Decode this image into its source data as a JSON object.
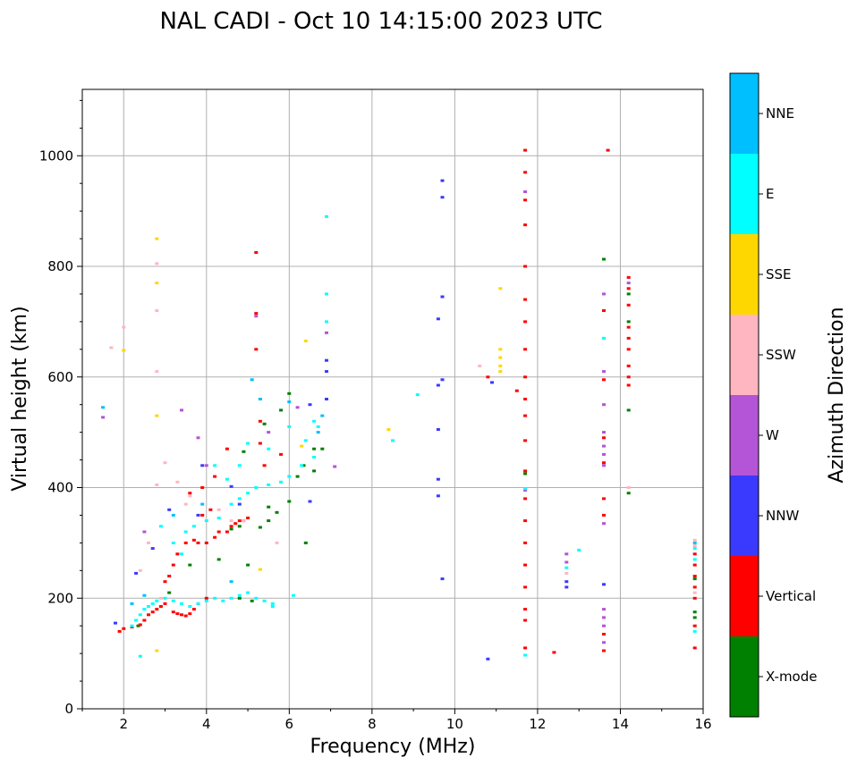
{
  "chart_data": {
    "type": "scatter",
    "title": "NAL CADI - Oct 10 14:15:00 2023 UTC",
    "xlabel": "Frequency (MHz)",
    "ylabel": "Virtual height (km)",
    "xlim": [
      1,
      16
    ],
    "ylim": [
      0,
      1120
    ],
    "xticks": [
      2,
      4,
      6,
      8,
      10,
      12,
      14,
      16
    ],
    "yticks": [
      0,
      200,
      400,
      600,
      800,
      1000
    ],
    "grid": true,
    "colorbar": {
      "label": "Azimuth Direction",
      "categories": [
        {
          "name": "X-mode",
          "color": "#008000"
        },
        {
          "name": "Vertical",
          "color": "#ff0000"
        },
        {
          "name": "NNW",
          "color": "#3a3aff"
        },
        {
          "name": "W",
          "color": "#b454d6"
        },
        {
          "name": "SSW",
          "color": "#ffb6c1"
        },
        {
          "name": "SSE",
          "color": "#ffd700"
        },
        {
          "name": "E",
          "color": "#00ffff"
        },
        {
          "name": "NNE",
          "color": "#00bfff"
        }
      ]
    },
    "series": [
      {
        "name": "X-mode",
        "points": [
          [
            2.2,
            148
          ],
          [
            2.35,
            150
          ],
          [
            3.1,
            210
          ],
          [
            3.6,
            260
          ],
          [
            4.3,
            270
          ],
          [
            4.8,
            200
          ],
          [
            5.1,
            195
          ],
          [
            5.5,
            340
          ],
          [
            5.7,
            355
          ],
          [
            6.0,
            375
          ],
          [
            6.2,
            420
          ],
          [
            6.35,
            440
          ],
          [
            6.6,
            470
          ],
          [
            6.6,
            430
          ],
          [
            6.0,
            570
          ],
          [
            5.8,
            540
          ],
          [
            5.4,
            515
          ],
          [
            4.9,
            465
          ],
          [
            4.6,
            325
          ],
          [
            4.8,
            330
          ],
          [
            5.3,
            328
          ],
          [
            6.4,
            300
          ],
          [
            13.6,
            813
          ],
          [
            14.2,
            750
          ],
          [
            14.2,
            700
          ],
          [
            14.2,
            540
          ],
          [
            14.2,
            390
          ],
          [
            15.8,
            235
          ],
          [
            15.8,
            175
          ],
          [
            15.8,
            165
          ],
          [
            11.7,
            425
          ],
          [
            5.0,
            260
          ],
          [
            5.5,
            365
          ],
          [
            6.8,
            470
          ]
        ]
      },
      {
        "name": "Vertical",
        "points": [
          [
            1.9,
            140
          ],
          [
            2.0,
            145
          ],
          [
            2.2,
            148
          ],
          [
            2.4,
            152
          ],
          [
            2.5,
            160
          ],
          [
            2.6,
            170
          ],
          [
            2.7,
            175
          ],
          [
            2.8,
            180
          ],
          [
            2.9,
            185
          ],
          [
            3.0,
            190
          ],
          [
            3.2,
            175
          ],
          [
            3.3,
            172
          ],
          [
            3.4,
            170
          ],
          [
            3.5,
            168
          ],
          [
            3.6,
            172
          ],
          [
            3.7,
            180
          ],
          [
            3.8,
            190
          ],
          [
            4.0,
            200
          ],
          [
            3.0,
            230
          ],
          [
            3.1,
            240
          ],
          [
            3.2,
            260
          ],
          [
            3.3,
            280
          ],
          [
            3.5,
            300
          ],
          [
            3.7,
            305
          ],
          [
            3.8,
            300
          ],
          [
            4.0,
            300
          ],
          [
            4.2,
            310
          ],
          [
            4.3,
            320
          ],
          [
            4.5,
            320
          ],
          [
            4.6,
            330
          ],
          [
            4.7,
            335
          ],
          [
            4.8,
            340
          ],
          [
            4.9,
            340
          ],
          [
            5.0,
            345
          ],
          [
            3.9,
            350
          ],
          [
            4.1,
            360
          ],
          [
            3.6,
            390
          ],
          [
            3.9,
            400
          ],
          [
            4.2,
            420
          ],
          [
            4.5,
            470
          ],
          [
            5.2,
            825
          ],
          [
            5.2,
            715
          ],
          [
            5.2,
            650
          ],
          [
            5.3,
            520
          ],
          [
            5.3,
            480
          ],
          [
            5.4,
            440
          ],
          [
            5.8,
            460
          ],
          [
            11.7,
            1010
          ],
          [
            11.7,
            970
          ],
          [
            11.7,
            920
          ],
          [
            11.7,
            875
          ],
          [
            11.7,
            800
          ],
          [
            11.7,
            740
          ],
          [
            11.7,
            700
          ],
          [
            11.7,
            650
          ],
          [
            11.7,
            600
          ],
          [
            11.7,
            560
          ],
          [
            11.7,
            530
          ],
          [
            11.7,
            485
          ],
          [
            11.7,
            430
          ],
          [
            11.7,
            380
          ],
          [
            11.7,
            340
          ],
          [
            11.7,
            300
          ],
          [
            11.7,
            260
          ],
          [
            11.7,
            220
          ],
          [
            11.7,
            180
          ],
          [
            11.7,
            160
          ],
          [
            11.7,
            110
          ],
          [
            11.5,
            575
          ],
          [
            10.8,
            600
          ],
          [
            12.4,
            102
          ],
          [
            13.6,
            720
          ],
          [
            13.6,
            595
          ],
          [
            13.6,
            490
          ],
          [
            13.6,
            445
          ],
          [
            13.6,
            380
          ],
          [
            13.6,
            350
          ],
          [
            13.6,
            135
          ],
          [
            13.6,
            105
          ],
          [
            13.7,
            1010
          ],
          [
            14.2,
            780
          ],
          [
            14.2,
            760
          ],
          [
            14.2,
            730
          ],
          [
            14.2,
            690
          ],
          [
            14.2,
            670
          ],
          [
            14.2,
            650
          ],
          [
            14.2,
            620
          ],
          [
            14.2,
            600
          ],
          [
            14.2,
            585
          ],
          [
            15.8,
            280
          ],
          [
            15.8,
            260
          ],
          [
            15.8,
            240
          ],
          [
            15.8,
            220
          ],
          [
            15.8,
            200
          ],
          [
            15.8,
            150
          ],
          [
            15.8,
            110
          ]
        ]
      },
      {
        "name": "NNW",
        "points": [
          [
            1.8,
            155
          ],
          [
            2.3,
            245
          ],
          [
            2.7,
            290
          ],
          [
            3.1,
            360
          ],
          [
            3.8,
            350
          ],
          [
            3.9,
            440
          ],
          [
            4.8,
            370
          ],
          [
            4.6,
            402
          ],
          [
            6.5,
            550
          ],
          [
            6.5,
            375
          ],
          [
            6.9,
            560
          ],
          [
            6.9,
            610
          ],
          [
            6.9,
            630
          ],
          [
            9.7,
            955
          ],
          [
            9.7,
            925
          ],
          [
            9.7,
            745
          ],
          [
            9.6,
            705
          ],
          [
            9.7,
            595
          ],
          [
            9.6,
            585
          ],
          [
            9.6,
            505
          ],
          [
            9.6,
            415
          ],
          [
            9.6,
            385
          ],
          [
            9.7,
            235
          ],
          [
            10.8,
            90
          ],
          [
            10.9,
            590
          ],
          [
            12.7,
            230
          ],
          [
            12.7,
            220
          ],
          [
            13.6,
            225
          ]
        ]
      },
      {
        "name": "W",
        "points": [
          [
            1.5,
            527
          ],
          [
            2.5,
            320
          ],
          [
            3.4,
            540
          ],
          [
            3.8,
            490
          ],
          [
            4.0,
            440
          ],
          [
            5.2,
            710
          ],
          [
            5.5,
            500
          ],
          [
            6.2,
            545
          ],
          [
            6.9,
            680
          ],
          [
            7.1,
            438
          ],
          [
            11.7,
            935
          ],
          [
            11.7,
            395
          ],
          [
            12.7,
            280
          ],
          [
            12.7,
            265
          ],
          [
            13.6,
            750
          ],
          [
            13.6,
            610
          ],
          [
            13.6,
            550
          ],
          [
            13.6,
            500
          ],
          [
            13.6,
            475
          ],
          [
            13.6,
            460
          ],
          [
            13.6,
            440
          ],
          [
            13.6,
            335
          ],
          [
            13.6,
            180
          ],
          [
            13.6,
            165
          ],
          [
            13.6,
            150
          ],
          [
            13.6,
            120
          ],
          [
            14.2,
            770
          ]
        ]
      },
      {
        "name": "SSW",
        "points": [
          [
            1.7,
            653
          ],
          [
            2.0,
            690
          ],
          [
            2.8,
            805
          ],
          [
            2.8,
            720
          ],
          [
            2.8,
            610
          ],
          [
            2.8,
            405
          ],
          [
            2.6,
            300
          ],
          [
            2.4,
            250
          ],
          [
            2.9,
            200
          ],
          [
            3.0,
            445
          ],
          [
            3.3,
            410
          ],
          [
            3.5,
            370
          ],
          [
            3.6,
            385
          ],
          [
            4.3,
            360
          ],
          [
            4.6,
            340
          ],
          [
            4.9,
            340
          ],
          [
            5.7,
            300
          ],
          [
            10.6,
            620
          ],
          [
            12.7,
            245
          ],
          [
            14.2,
            400
          ],
          [
            15.8,
            305
          ],
          [
            15.8,
            295
          ],
          [
            15.8,
            210
          ]
        ]
      },
      {
        "name": "SSE",
        "points": [
          [
            2.0,
            648
          ],
          [
            2.8,
            850
          ],
          [
            2.8,
            770
          ],
          [
            2.8,
            530
          ],
          [
            2.8,
            105
          ],
          [
            6.4,
            665
          ],
          [
            8.4,
            505
          ],
          [
            11.1,
            760
          ],
          [
            11.1,
            650
          ],
          [
            11.1,
            635
          ],
          [
            11.1,
            620
          ],
          [
            11.1,
            610
          ],
          [
            5.3,
            252
          ],
          [
            6.3,
            475
          ]
        ]
      },
      {
        "name": "E",
        "points": [
          [
            2.2,
            150
          ],
          [
            2.3,
            160
          ],
          [
            2.4,
            170
          ],
          [
            2.5,
            180
          ],
          [
            2.6,
            185
          ],
          [
            2.7,
            190
          ],
          [
            2.8,
            195
          ],
          [
            3.0,
            200
          ],
          [
            3.2,
            195
          ],
          [
            3.4,
            190
          ],
          [
            3.6,
            185
          ],
          [
            3.8,
            190
          ],
          [
            4.0,
            195
          ],
          [
            4.2,
            200
          ],
          [
            4.4,
            195
          ],
          [
            4.6,
            200
          ],
          [
            4.8,
            205
          ],
          [
            5.0,
            210
          ],
          [
            5.2,
            200
          ],
          [
            5.4,
            195
          ],
          [
            5.6,
            190
          ],
          [
            5.6,
            185
          ],
          [
            6.1,
            205
          ],
          [
            2.9,
            330
          ],
          [
            3.2,
            300
          ],
          [
            3.4,
            280
          ],
          [
            3.5,
            320
          ],
          [
            3.7,
            330
          ],
          [
            4.0,
            340
          ],
          [
            4.3,
            345
          ],
          [
            4.6,
            370
          ],
          [
            4.8,
            380
          ],
          [
            5.0,
            390
          ],
          [
            5.2,
            400
          ],
          [
            5.5,
            405
          ],
          [
            5.8,
            410
          ],
          [
            6.0,
            420
          ],
          [
            6.3,
            440
          ],
          [
            6.6,
            455
          ],
          [
            4.2,
            440
          ],
          [
            4.5,
            415
          ],
          [
            4.8,
            440
          ],
          [
            5.0,
            480
          ],
          [
            5.5,
            470
          ],
          [
            6.0,
            510
          ],
          [
            6.4,
            485
          ],
          [
            6.7,
            510
          ],
          [
            6.9,
            890
          ],
          [
            6.9,
            750
          ],
          [
            6.9,
            700
          ],
          [
            6.6,
            520
          ],
          [
            8.5,
            485
          ],
          [
            9.1,
            568
          ],
          [
            2.4,
            95
          ],
          [
            11.7,
            398
          ],
          [
            11.7,
            97
          ],
          [
            13.6,
            670
          ],
          [
            12.7,
            255
          ],
          [
            13.0,
            287
          ],
          [
            15.8,
            290
          ],
          [
            15.8,
            270
          ],
          [
            15.8,
            140
          ]
        ]
      },
      {
        "name": "NNE",
        "points": [
          [
            1.5,
            545
          ],
          [
            2.2,
            190
          ],
          [
            2.5,
            205
          ],
          [
            3.2,
            350
          ],
          [
            3.9,
            370
          ],
          [
            4.6,
            230
          ],
          [
            5.1,
            595
          ],
          [
            5.3,
            560
          ],
          [
            6.0,
            555
          ],
          [
            6.8,
            530
          ],
          [
            6.7,
            500
          ],
          [
            15.8,
            300
          ]
        ]
      }
    ]
  }
}
